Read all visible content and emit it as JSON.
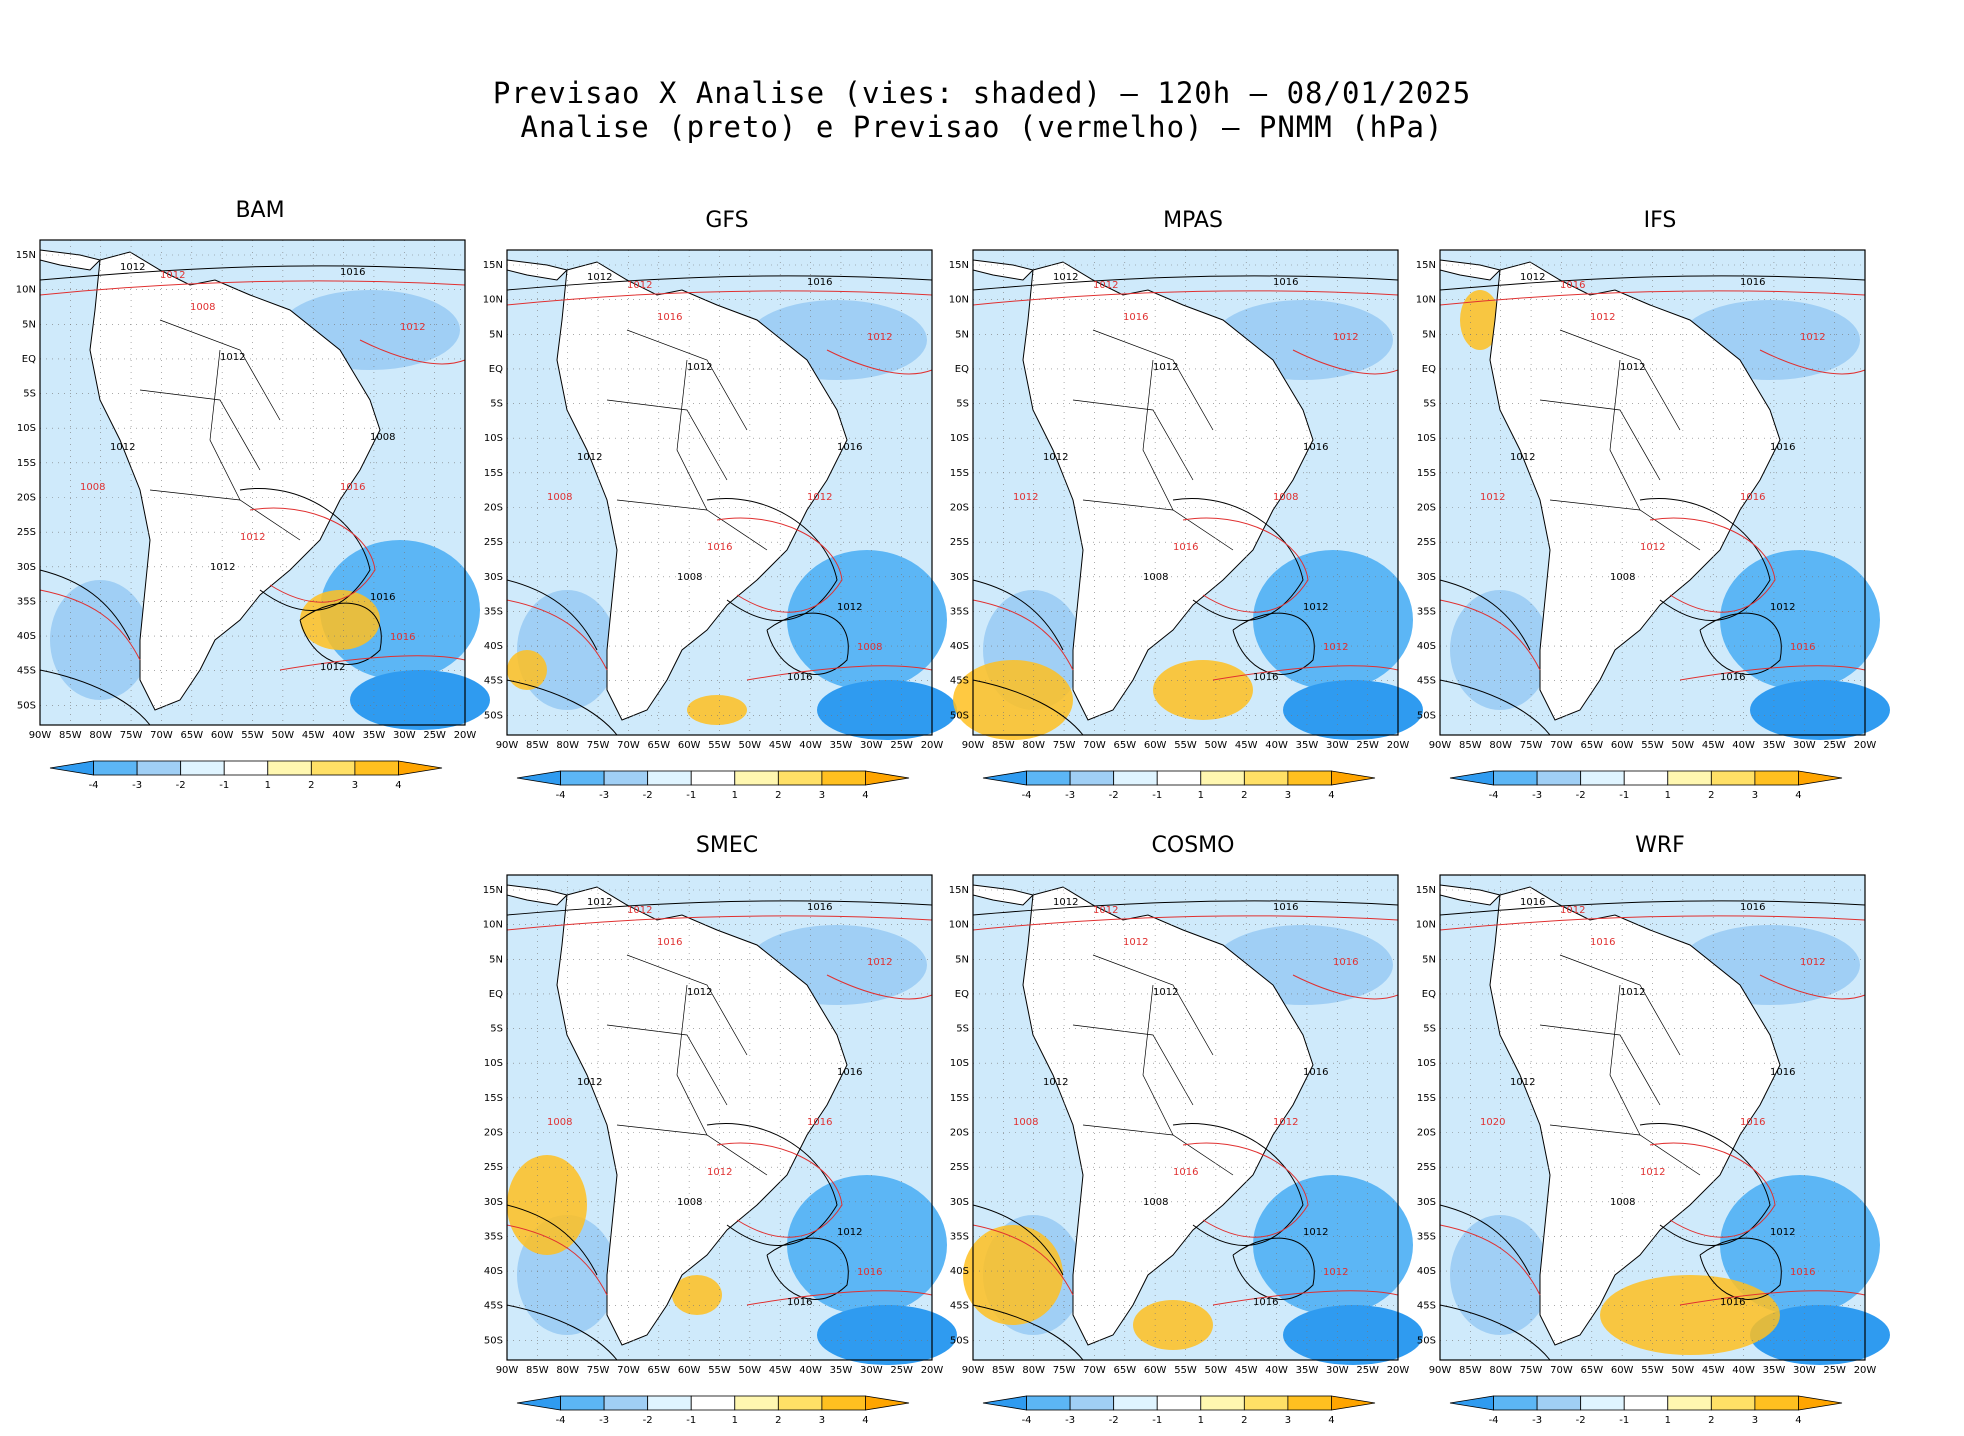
{
  "title": {
    "line1": "Previsao X Analise (vies: shaded) — 120h — 08/01/2025",
    "line2": "Analise (preto) e Previsao (vermelho) — PNMM (hPa)"
  },
  "lat_labels": [
    "15N",
    "10N",
    "5N",
    "EQ",
    "5S",
    "10S",
    "15S",
    "20S",
    "25S",
    "30S",
    "35S",
    "40S",
    "45S",
    "50S"
  ],
  "lon_labels": [
    "90W",
    "85W",
    "80W",
    "75W",
    "70W",
    "65W",
    "60W",
    "55W",
    "50W",
    "45W",
    "40W",
    "35W",
    "30W",
    "25W",
    "20W"
  ],
  "colorbar": {
    "labels": [
      "-4",
      "-3",
      "-2",
      "-1",
      "1",
      "2",
      "3",
      "4"
    ],
    "colors": [
      "#2f9bf0",
      "#5cb6f5",
      "#a0cff5",
      "#dff4ff",
      "#ffffff",
      "#fff7b0",
      "#ffe066",
      "#ffc020",
      "#ffa500"
    ]
  },
  "colors": {
    "analysis": "#000000",
    "forecast": "#e03030",
    "ocean_bias": "#a8d8f5",
    "land": "#ffffff"
  },
  "panels": [
    {
      "id": "bam",
      "name": "BAM",
      "isobars_black": [
        "1012",
        "1016",
        "1012",
        "1008",
        "1012",
        "1012",
        "1016",
        "1012"
      ],
      "isobars_red": [
        "1012",
        "1008",
        "1012",
        "1016",
        "1008",
        "1012",
        "1016"
      ]
    },
    {
      "id": "gfs",
      "name": "GFS",
      "isobars_black": [
        "1012",
        "1016",
        "1012",
        "1016",
        "1012",
        "1008",
        "1012",
        "1016"
      ],
      "isobars_red": [
        "1012",
        "1016",
        "1012",
        "1012",
        "1008",
        "1016",
        "1008"
      ]
    },
    {
      "id": "mpas",
      "name": "MPAS",
      "isobars_black": [
        "1012",
        "1016",
        "1012",
        "1016",
        "1012",
        "1008",
        "1012",
        "1016"
      ],
      "isobars_red": [
        "1012",
        "1016",
        "1012",
        "1008",
        "1012",
        "1016",
        "1012"
      ]
    },
    {
      "id": "ifs",
      "name": "IFS",
      "isobars_black": [
        "1012",
        "1016",
        "1012",
        "1016",
        "1012",
        "1008",
        "1012",
        "1016"
      ],
      "isobars_red": [
        "1016",
        "1012",
        "1012",
        "1016",
        "1012",
        "1012",
        "1016"
      ]
    },
    {
      "id": "smec",
      "name": "SMEC",
      "isobars_black": [
        "1012",
        "1016",
        "1012",
        "1016",
        "1012",
        "1008",
        "1012",
        "1016"
      ],
      "isobars_red": [
        "1012",
        "1016",
        "1012",
        "1016",
        "1008",
        "1012",
        "1016"
      ]
    },
    {
      "id": "cosmo",
      "name": "COSMO",
      "isobars_black": [
        "1012",
        "1016",
        "1012",
        "1016",
        "1012",
        "1008",
        "1012",
        "1016"
      ],
      "isobars_red": [
        "1012",
        "1012",
        "1016",
        "1012",
        "1008",
        "1016",
        "1012"
      ]
    },
    {
      "id": "wrf",
      "name": "WRF",
      "isobars_black": [
        "1016",
        "1016",
        "1012",
        "1016",
        "1012",
        "1008",
        "1012",
        "1016"
      ],
      "isobars_red": [
        "1012",
        "1016",
        "1012",
        "1016",
        "1020",
        "1012",
        "1016"
      ]
    }
  ]
}
